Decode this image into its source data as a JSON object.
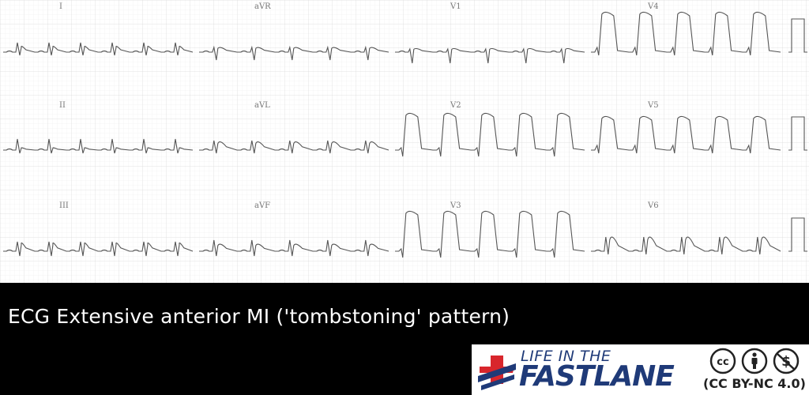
{
  "ecg": {
    "leads": [
      "I",
      "aVR",
      "V1",
      "V4",
      "II",
      "aVL",
      "V2",
      "V5",
      "III",
      "aVF",
      "V3",
      "V6"
    ],
    "trace_color": "#555555",
    "grid_color": "#e2e2e2"
  },
  "caption": "ECG Extensive anterior MI ('tombstoning' pattern)",
  "logo": {
    "line1": "LIFE IN THE",
    "line2": "FASTLANE",
    "brand_blue": "#1f3a78",
    "brand_red": "#d8262c",
    "license": "(CC BY-NC 4.0)"
  }
}
